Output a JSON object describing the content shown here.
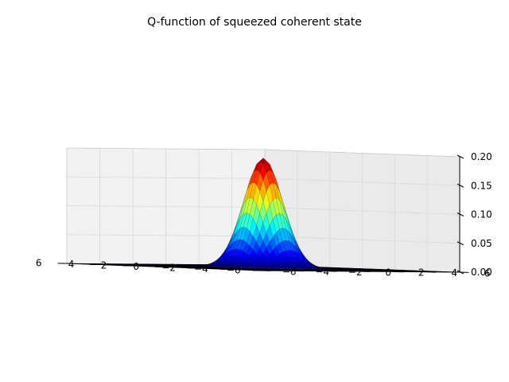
{
  "chart_data": {
    "type": "surface3d",
    "title": "Q-function of squeezed coherent state",
    "xlabel": "",
    "ylabel": "",
    "zlabel": "",
    "xlim": [
      -6,
      6
    ],
    "ylim": [
      -6,
      6
    ],
    "zlim": [
      0,
      0.2
    ],
    "x_ticks": [
      -6,
      -4,
      -2,
      0,
      2,
      4,
      6
    ],
    "y_ticks": [
      -6,
      -4,
      -2,
      0,
      2,
      4,
      6
    ],
    "z_ticks": [
      0.0,
      0.05,
      0.1,
      0.15,
      0.2
    ],
    "x_tick_labels": [
      "−6",
      "−4",
      "−2",
      "0",
      "2",
      "4",
      "6"
    ],
    "y_tick_labels": [
      "−6",
      "−4",
      "−2",
      "0",
      "2",
      "4",
      "6"
    ],
    "z_tick_labels": [
      "0.00",
      "0.05",
      "0.10",
      "0.15",
      "0.20"
    ],
    "grid": true,
    "colormap": "jet",
    "peak": {
      "x": 0,
      "y": 0,
      "z": 0.19
    },
    "spread": {
      "x": 0.85,
      "y": 0.85
    }
  }
}
